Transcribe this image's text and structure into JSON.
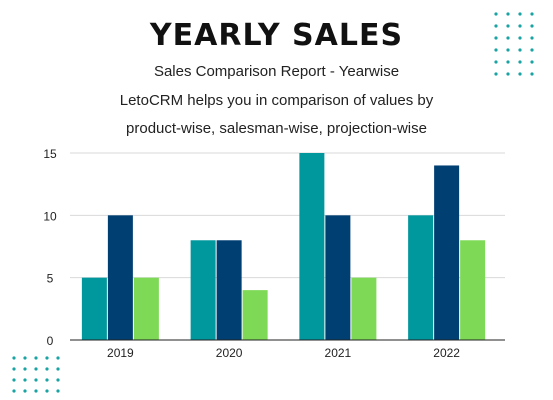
{
  "header": {
    "title": "YEARLY SALES",
    "subtitle": "Sales Comparison Report - Yearwise",
    "description_line1": "LetoCRM helps you in comparison of values by",
    "description_line2": "product-wise, salesman-wise, projection-wise"
  },
  "colors": {
    "series1": "#00979d",
    "series2": "#003f72",
    "series3": "#7ed957",
    "dots": "#1aa3a3",
    "grid": "#d9d9d9",
    "axis": "#222222"
  },
  "chart_data": {
    "type": "bar",
    "categories": [
      "2019",
      "2020",
      "2021",
      "2022"
    ],
    "series": [
      {
        "values": [
          5,
          8,
          15,
          10
        ]
      },
      {
        "values": [
          10,
          8,
          10,
          14
        ]
      },
      {
        "values": [
          5,
          4,
          5,
          8
        ]
      }
    ],
    "yticks": [
      "0",
      "5",
      "10",
      "15"
    ],
    "ylim": [
      0,
      15
    ],
    "grid": true,
    "legend": "none"
  }
}
